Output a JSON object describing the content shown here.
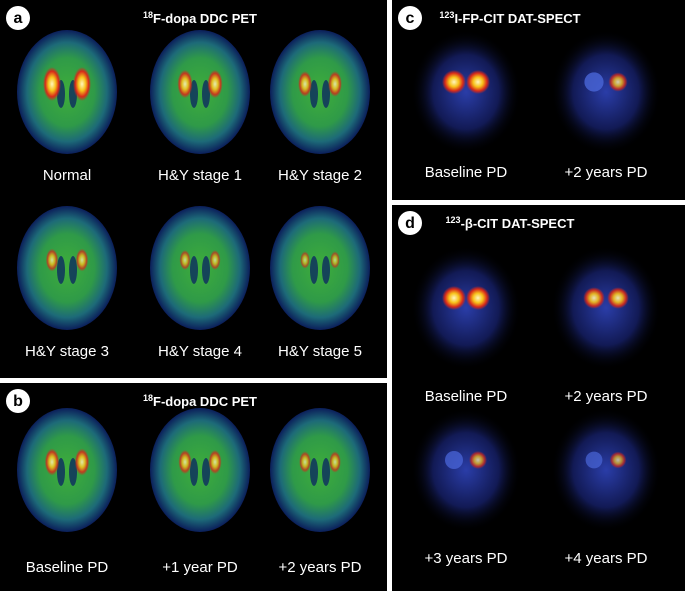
{
  "panels": [
    {
      "label": "a",
      "title_sup": "18",
      "title": "F-dopa DDC PET",
      "images": [
        {
          "caption": "Normal"
        },
        {
          "caption": "H&Y stage 1"
        },
        {
          "caption": "H&Y stage 2"
        },
        {
          "caption": "H&Y stage 3"
        },
        {
          "caption": "H&Y stage 4"
        },
        {
          "caption": "H&Y stage 5"
        }
      ]
    },
    {
      "label": "b",
      "title_sup": "18",
      "title": "F-dopa DDC PET",
      "images": [
        {
          "caption": "Baseline PD"
        },
        {
          "caption": "+1 year PD"
        },
        {
          "caption": "+2 years PD"
        }
      ]
    },
    {
      "label": "c",
      "title_sup": "123",
      "title": "I-FP-CIT DAT-SPECT",
      "images": [
        {
          "caption": "Baseline PD"
        },
        {
          "caption": "+2 years PD"
        }
      ]
    },
    {
      "label": "d",
      "title_sup": "123",
      "title": "-β-CIT DAT-SPECT",
      "images": [
        {
          "caption": "Baseline PD"
        },
        {
          "caption": "+2 years PD"
        },
        {
          "caption": "+3 years PD"
        },
        {
          "caption": "+4 years PD"
        }
      ]
    }
  ]
}
